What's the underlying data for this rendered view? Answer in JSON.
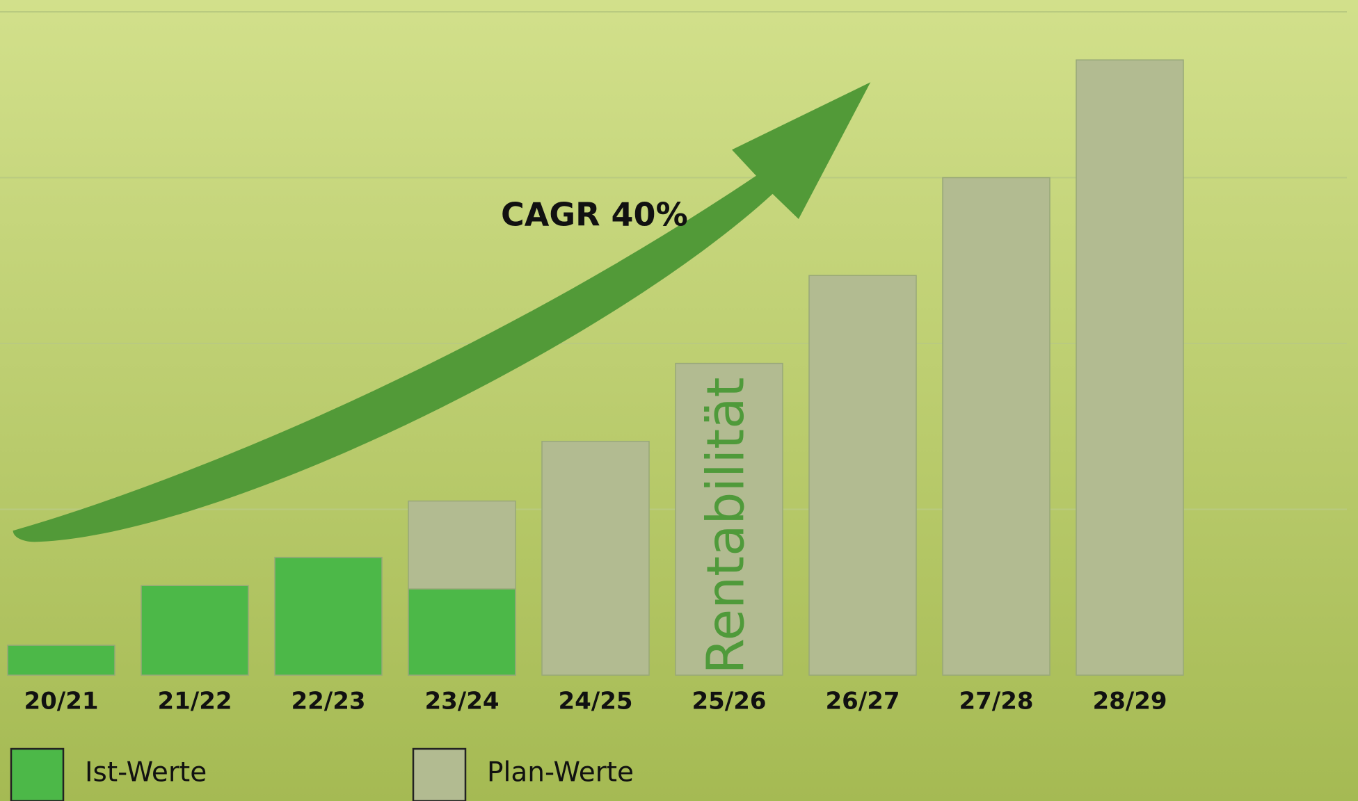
{
  "chart_data": {
    "type": "bar",
    "categories": [
      "20/21",
      "21/22",
      "22/23",
      "23/24",
      "24/25",
      "25/26",
      "26/27",
      "27/28",
      "28/29"
    ],
    "series": [
      {
        "name": "Plan-Werte",
        "color": "#b2bb91",
        "values": [
          null,
          null,
          null,
          1.05,
          1.41,
          1.88,
          2.41,
          3.0,
          3.71
        ]
      },
      {
        "name": "Ist-Werte",
        "color": "#4cb848",
        "values": [
          0.18,
          0.54,
          0.71,
          0.52,
          null,
          null,
          null,
          null,
          null
        ]
      }
    ],
    "ylim": [
      0,
      4
    ],
    "yticks": [
      1,
      2,
      3,
      4
    ],
    "grid": true,
    "annotations": [
      "CAGR 40%",
      "Rentabilität"
    ]
  }
}
